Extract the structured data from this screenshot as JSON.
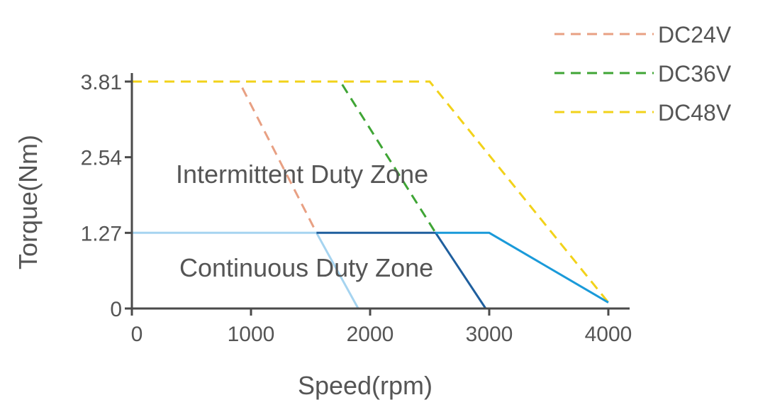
{
  "chart_data": {
    "type": "line",
    "title": "",
    "xlabel": "Speed(rpm)",
    "ylabel": "Torque(Nm)",
    "xlim": [
      0,
      4000
    ],
    "ylim": [
      0,
      3.81
    ],
    "x_ticks": [
      {
        "value": 0,
        "label": "0"
      },
      {
        "value": 1000,
        "label": "1000"
      },
      {
        "value": 2000,
        "label": "2000"
      },
      {
        "value": 3000,
        "label": "3000"
      },
      {
        "value": 4000,
        "label": "4000"
      }
    ],
    "y_ticks": [
      {
        "value": 0,
        "label": "0"
      },
      {
        "value": 1.27,
        "label": "1.27"
      },
      {
        "value": 2.54,
        "label": "2.54"
      },
      {
        "value": 3.81,
        "label": "3.81"
      }
    ],
    "grid": false,
    "legend_position": "top-right",
    "annotations": [
      {
        "text": "Intermittent Duty Zone",
        "x": 900,
        "y": 2.25
      },
      {
        "text": "Continuous Duty Zone",
        "x": 900,
        "y": 0.65
      }
    ],
    "series": [
      {
        "name": "DC24V",
        "style": "dashed",
        "color": "#e8a083",
        "x": [
          0,
          900,
          1550
        ],
        "y": [
          3.81,
          3.81,
          1.27
        ]
      },
      {
        "name": "DC36V",
        "style": "dashed",
        "color": "#3fa535",
        "x": [
          0,
          1750,
          2550
        ],
        "y": [
          3.81,
          3.81,
          1.27
        ]
      },
      {
        "name": "DC48V",
        "style": "dashed",
        "color": "#f2d21a",
        "x": [
          0,
          2500,
          4000
        ],
        "y": [
          3.81,
          3.81,
          0.1
        ]
      },
      {
        "style": "solid",
        "color": "#a6d4f0",
        "x": [
          0,
          1550,
          1900
        ],
        "y": [
          1.27,
          1.27,
          0
        ]
      },
      {
        "style": "solid",
        "color": "#1f5f9e",
        "x": [
          1550,
          2550,
          2970
        ],
        "y": [
          1.27,
          1.27,
          0
        ]
      },
      {
        "style": "solid",
        "color": "#1a9ad9",
        "x": [
          2550,
          3000,
          4000
        ],
        "y": [
          1.27,
          1.27,
          0.1
        ]
      }
    ]
  }
}
